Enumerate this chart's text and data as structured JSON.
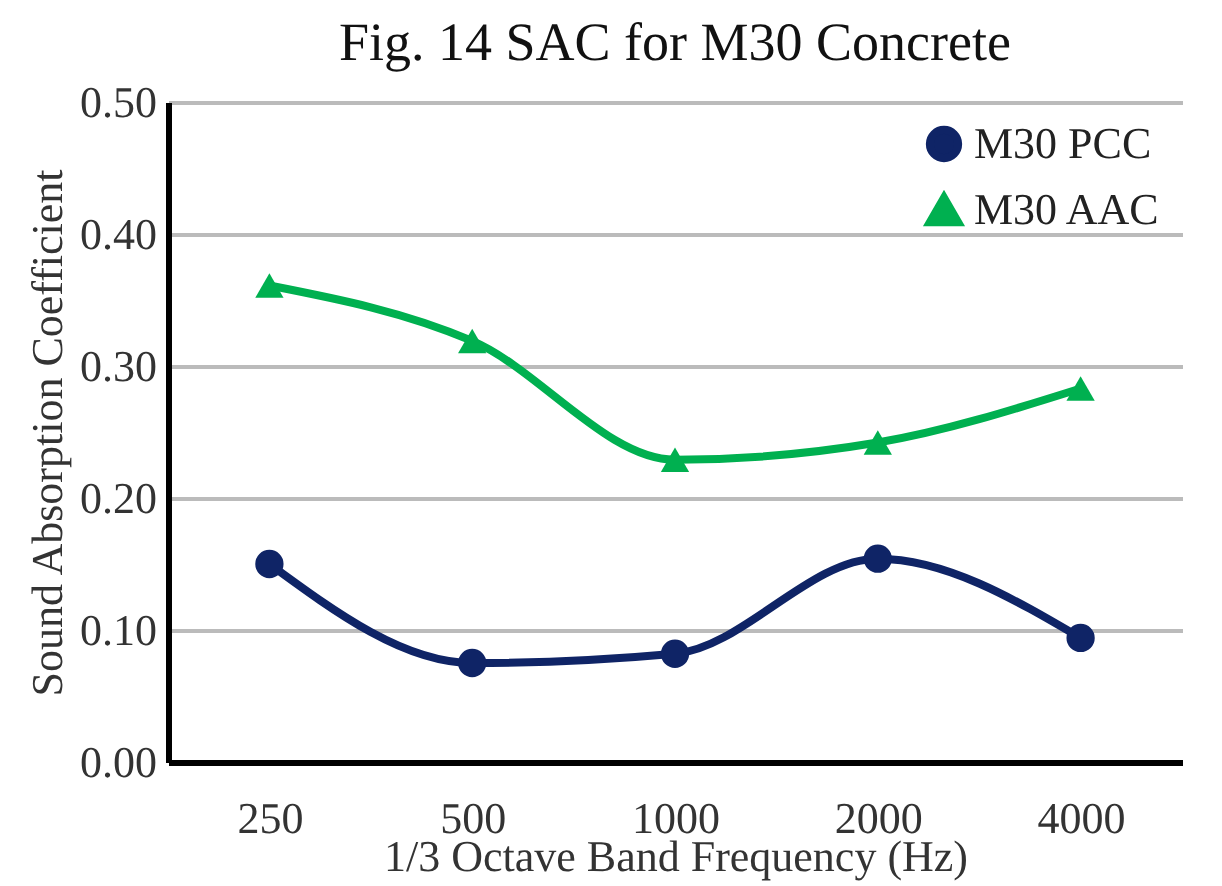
{
  "chart_data": {
    "type": "line",
    "title": "Fig. 14 SAC for M30 Concrete",
    "xlabel": "1/3 Octave Band Frequency (Hz)",
    "ylabel": "Sound Absorption Coefficient",
    "categories": [
      "250",
      "500",
      "1000",
      "2000",
      "4000"
    ],
    "series": [
      {
        "name": "M30 PCC",
        "color": "#0f2466",
        "marker": "circle",
        "values": [
          0.15,
          0.075,
          0.082,
          0.154,
          0.094
        ]
      },
      {
        "name": "M30 AAC",
        "color": "#00b050",
        "marker": "triangle",
        "values": [
          0.361,
          0.319,
          0.229,
          0.242,
          0.283
        ]
      }
    ],
    "ylim": [
      0,
      0.5
    ],
    "yticks": [
      {
        "value": 0,
        "label": "0.00"
      },
      {
        "value": 0.1,
        "label": "0.10"
      },
      {
        "value": 0.2,
        "label": "0.20"
      },
      {
        "value": 0.3,
        "label": "0.30"
      },
      {
        "value": 0.4,
        "label": "0.40"
      },
      {
        "value": 0.5,
        "label": "0.50"
      }
    ],
    "grid": "y",
    "legend": "top right"
  }
}
